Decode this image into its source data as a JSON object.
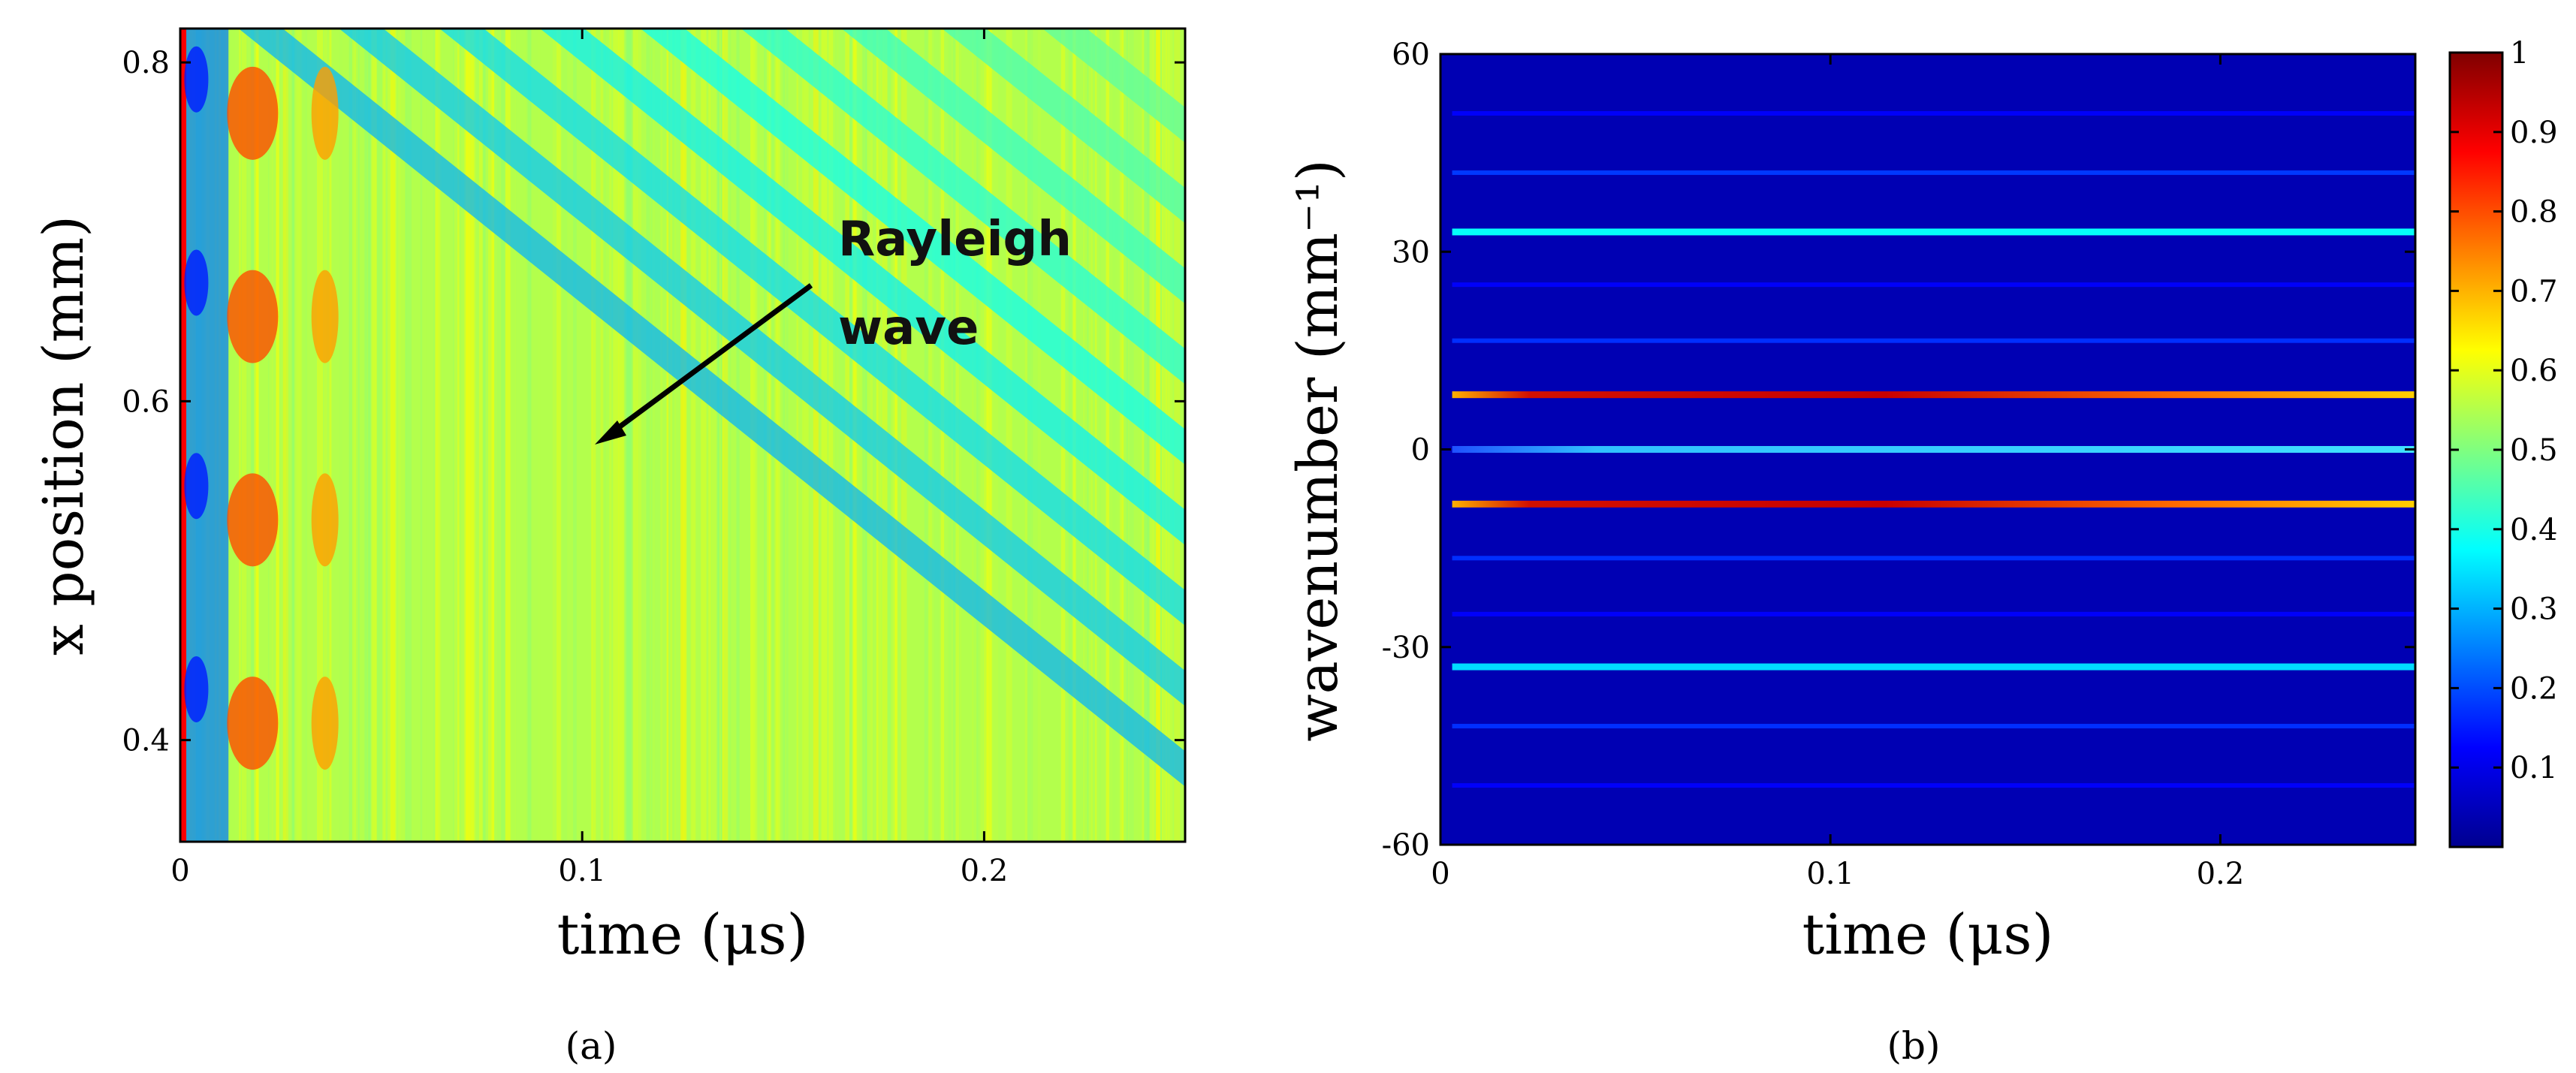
{
  "chart_data": [
    {
      "panel": "a",
      "caption": "(a)",
      "type": "heatmap",
      "xlabel": "time (μs)",
      "ylabel": "x position (mm)",
      "xlim": [
        0,
        0.25
      ],
      "ylim": [
        0.34,
        0.82
      ],
      "xticks": [
        0,
        0.1,
        0.2
      ],
      "xtick_labels": [
        "0",
        "0.1",
        "0.2"
      ],
      "yticks": [
        0.4,
        0.6,
        0.8
      ],
      "ytick_labels": [
        "0.4",
        "0.6",
        "0.8"
      ],
      "annotation": {
        "lines": [
          "Rayleigh",
          "wave"
        ],
        "arrow_to": [
          0.105,
          0.58
        ]
      },
      "description_values": {
        "background_level": 0.55,
        "wave_stripes": [
          {
            "t0": 0.02,
            "level": 0.3
          },
          {
            "t0": 0.045,
            "level": 0.32
          },
          {
            "t0": 0.07,
            "level": 0.34
          },
          {
            "t0": 0.095,
            "level": 0.36
          },
          {
            "t0": 0.12,
            "level": 0.38
          },
          {
            "t0": 0.145,
            "level": 0.4
          },
          {
            "t0": 0.17,
            "level": 0.42
          },
          {
            "t0": 0.195,
            "level": 0.44
          },
          {
            "t0": 0.22,
            "level": 0.46
          }
        ],
        "stripe_slope_mm_per_us": -1.9,
        "hotspots_x": [
          0.41,
          0.53,
          0.65,
          0.77
        ],
        "hotspot_t": [
          0.018,
          0.036
        ]
      }
    },
    {
      "panel": "b",
      "caption": "(b)",
      "type": "heatmap",
      "xlabel": "time (μs)",
      "ylabel": "wavenumber (mm⁻¹)",
      "xlim": [
        0,
        0.25
      ],
      "ylim": [
        -60,
        60
      ],
      "xticks": [
        0,
        0.1,
        0.2
      ],
      "xtick_labels": [
        "0",
        "0.1",
        "0.2"
      ],
      "yticks": [
        -60,
        -30,
        0,
        30,
        60
      ],
      "ytick_labels": [
        "-60",
        "-30",
        "0",
        "30",
        "60"
      ],
      "colorbar": {
        "range": [
          0,
          1
        ],
        "ticks": [
          0.1,
          0.2,
          0.3,
          0.4,
          0.5,
          0.6,
          0.7,
          0.8,
          0.9,
          1
        ],
        "tick_labels": [
          "0.1",
          "0.2",
          "0.3",
          "0.4",
          "0.5",
          "0.6",
          "0.7",
          "0.8",
          "0.9",
          "1"
        ]
      },
      "background_level": 0.05,
      "bands": [
        {
          "k": 51,
          "value": 0.12
        },
        {
          "k": 42,
          "value": 0.18
        },
        {
          "k": 33,
          "value": 0.38
        },
        {
          "k": 25,
          "value": 0.12
        },
        {
          "k": 16.5,
          "value": 0.17
        },
        {
          "k": 8.3,
          "value": 0.86
        },
        {
          "k": 0,
          "value": 0.42
        },
        {
          "k": -8.3,
          "value": 0.88
        },
        {
          "k": -16.5,
          "value": 0.17
        },
        {
          "k": -25,
          "value": 0.12
        },
        {
          "k": -33,
          "value": 0.34
        },
        {
          "k": -42,
          "value": 0.17
        },
        {
          "k": -51,
          "value": 0.12
        }
      ]
    }
  ]
}
